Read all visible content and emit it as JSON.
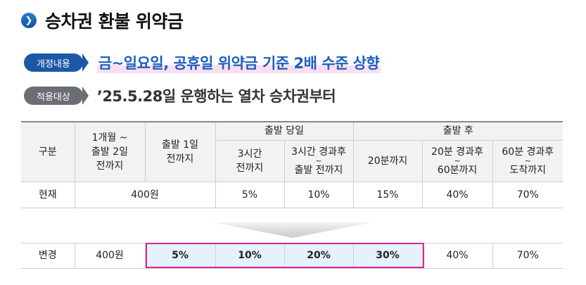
{
  "title": {
    "bullet_icon": "chevron-right-icon",
    "text": "승차권 환불 위약금"
  },
  "info": [
    {
      "tag": "개정내용",
      "text": "금~일요일, 공휴일 위약금 기준 2배 수준 상향"
    },
    {
      "tag": "적용대상",
      "text": "’25.5.28일 운행하는 열차 승차권부터"
    }
  ],
  "table": {
    "group_headers": {
      "departure_day": "출발 당일",
      "after_departure": "출발 후"
    },
    "columns": {
      "category": "구분",
      "col1": [
        "1개월 ~",
        "출발 2일",
        "전까지"
      ],
      "col2": [
        "출발 1일",
        "전까지"
      ],
      "col3": [
        "3시간",
        "전까지"
      ],
      "col4": [
        "3시간 경과후",
        "~",
        "출발 전까지"
      ],
      "col5": "20분까지",
      "col6": [
        "20분 경과후",
        "~",
        "60분까지"
      ],
      "col7": [
        "60분 경과후",
        "~",
        "도착까지"
      ]
    },
    "current": {
      "label": "현재",
      "merged": "400원",
      "c3": "5%",
      "c4": "10%",
      "c5": "15%",
      "c6": "40%",
      "c7": "70%"
    },
    "changed": {
      "label": "변경",
      "c1": "400원",
      "c2": "5%",
      "c3": "10%",
      "c4": "20%",
      "c5": "30%",
      "c6": "40%",
      "c7": "70%"
    }
  },
  "colors": {
    "accent_blue": "#1d58a8",
    "highlight_box": "#e0249a",
    "highlight_fill": "#e5f2fb"
  }
}
